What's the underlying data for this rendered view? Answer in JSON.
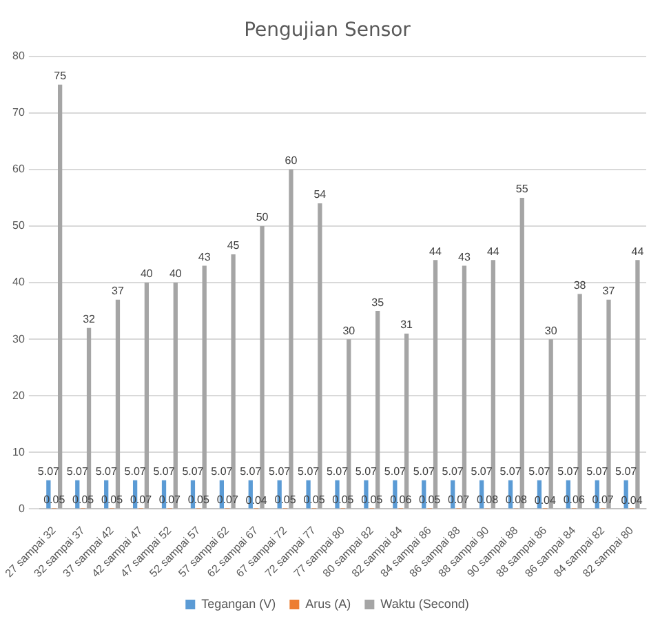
{
  "chart_data": {
    "type": "bar",
    "title": "Pengujian Sensor",
    "categories": [
      "27 sampai 32",
      "32 sampai 37",
      "37 sampai 42",
      "42 sampai 47",
      "47 sampai 52",
      "52 sampai 57",
      "57 sampai 62",
      "62 sampai 67",
      "67 sampai 72",
      "72 sampai 77",
      "77 sampai 80",
      "80 sampai 82",
      "82 sampai 84",
      "84 sampai 86",
      "86 sampai 88",
      "88 sampai 90",
      "90 sampai 88",
      "88 sampai 86",
      "86 sampai 84",
      "84 sampai 82",
      "82 sampai 80"
    ],
    "series": [
      {
        "name": "Tegangan (V)",
        "color": "#5b9bd5",
        "values": [
          5.07,
          5.07,
          5.07,
          5.07,
          5.07,
          5.07,
          5.07,
          5.07,
          5.07,
          5.07,
          5.07,
          5.07,
          5.07,
          5.07,
          5.07,
          5.07,
          5.07,
          5.07,
          5.07,
          5.07,
          5.07
        ]
      },
      {
        "name": "Arus (A)",
        "color": "#ed7d31",
        "values": [
          0.05,
          0.05,
          0.05,
          0.07,
          0.07,
          0.05,
          0.07,
          0.04,
          0.05,
          0.05,
          0.05,
          0.05,
          0.06,
          0.05,
          0.07,
          0.08,
          0.08,
          0.04,
          0.06,
          0.07,
          0.04
        ]
      },
      {
        "name": "Waktu (Second)",
        "color": "#a5a5a5",
        "values": [
          75,
          32,
          37,
          40,
          40,
          43,
          45,
          50,
          60,
          54,
          30,
          35,
          31,
          44,
          43,
          44,
          55,
          30,
          38,
          37,
          44
        ]
      }
    ],
    "ylim": [
      0,
      80
    ],
    "yticks": [
      0,
      10,
      20,
      30,
      40,
      50,
      60,
      70,
      80
    ],
    "grid": "y",
    "legend": "bottom",
    "data_labels": true
  }
}
